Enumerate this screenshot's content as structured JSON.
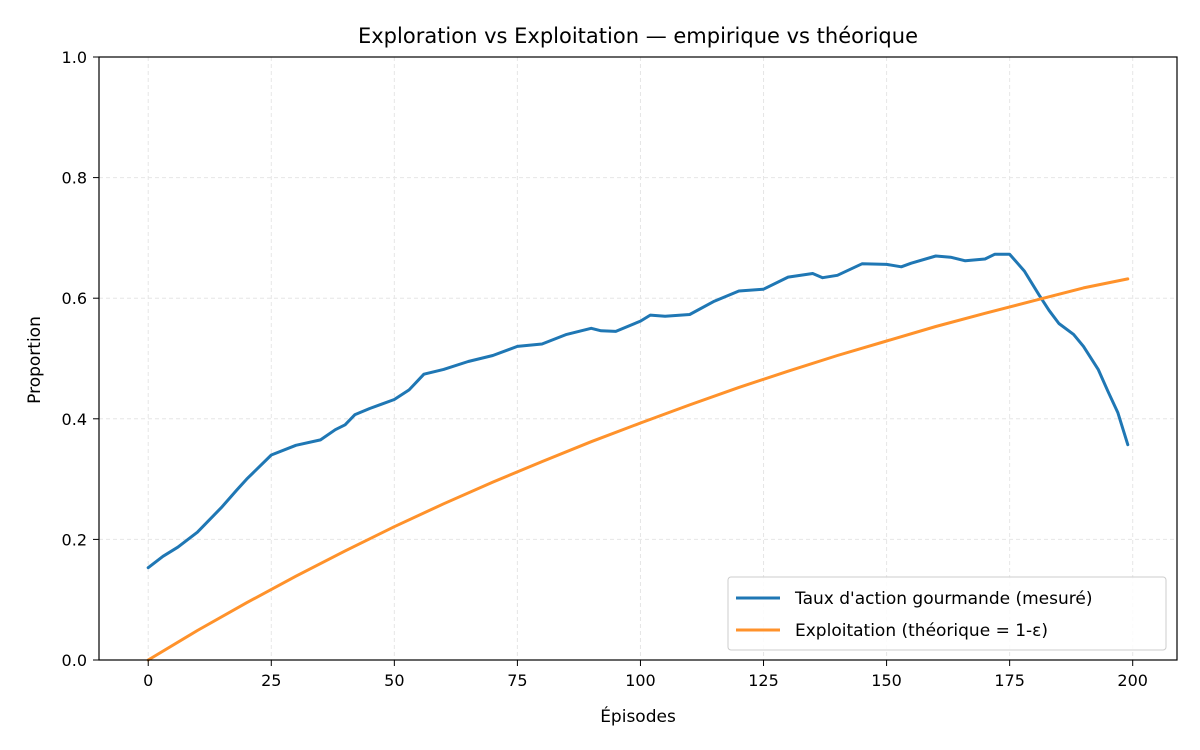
{
  "chart_data": {
    "type": "line",
    "title": "Exploration vs Exploitation — empirique vs théorique",
    "xlabel": "Épisodes",
    "ylabel": "Proportion",
    "xlim": [
      -10,
      209
    ],
    "ylim": [
      0,
      1
    ],
    "xticks": [
      0,
      25,
      50,
      75,
      100,
      125,
      150,
      175,
      200
    ],
    "yticks": [
      0.0,
      0.2,
      0.4,
      0.6,
      0.8,
      1.0
    ],
    "xtick_labels": [
      "0",
      "25",
      "50",
      "75",
      "100",
      "125",
      "150",
      "175",
      "200"
    ],
    "ytick_labels": [
      "0.0",
      "0.2",
      "0.4",
      "0.6",
      "0.8",
      "1.0"
    ],
    "grid": true,
    "legend_position": "bottom-right",
    "series": [
      {
        "name": "Taux d'action gourmande (mesuré)",
        "color": "#1f77b4",
        "points": [
          [
            0,
            0.153
          ],
          [
            3,
            0.172
          ],
          [
            6,
            0.187
          ],
          [
            10,
            0.212
          ],
          [
            15,
            0.254
          ],
          [
            18,
            0.282
          ],
          [
            20,
            0.3
          ],
          [
            25,
            0.34
          ],
          [
            30,
            0.356
          ],
          [
            35,
            0.365
          ],
          [
            38,
            0.382
          ],
          [
            40,
            0.39
          ],
          [
            42,
            0.407
          ],
          [
            45,
            0.417
          ],
          [
            50,
            0.432
          ],
          [
            53,
            0.448
          ],
          [
            56,
            0.474
          ],
          [
            60,
            0.482
          ],
          [
            65,
            0.495
          ],
          [
            70,
            0.505
          ],
          [
            75,
            0.52
          ],
          [
            80,
            0.524
          ],
          [
            85,
            0.54
          ],
          [
            90,
            0.55
          ],
          [
            92,
            0.546
          ],
          [
            95,
            0.545
          ],
          [
            100,
            0.562
          ],
          [
            102,
            0.572
          ],
          [
            105,
            0.57
          ],
          [
            110,
            0.573
          ],
          [
            115,
            0.595
          ],
          [
            120,
            0.612
          ],
          [
            125,
            0.615
          ],
          [
            130,
            0.635
          ],
          [
            135,
            0.641
          ],
          [
            137,
            0.634
          ],
          [
            140,
            0.638
          ],
          [
            145,
            0.657
          ],
          [
            150,
            0.656
          ],
          [
            153,
            0.652
          ],
          [
            155,
            0.658
          ],
          [
            160,
            0.67
          ],
          [
            163,
            0.668
          ],
          [
            166,
            0.662
          ],
          [
            170,
            0.665
          ],
          [
            172,
            0.673
          ],
          [
            175,
            0.673
          ],
          [
            178,
            0.645
          ],
          [
            181,
            0.605
          ],
          [
            183,
            0.58
          ],
          [
            185,
            0.558
          ],
          [
            188,
            0.54
          ],
          [
            190,
            0.52
          ],
          [
            193,
            0.482
          ],
          [
            195,
            0.445
          ],
          [
            197,
            0.41
          ],
          [
            199,
            0.357
          ]
        ]
      },
      {
        "name": "Exploitation (théorique = 1-ε)",
        "color": "#ff922b",
        "points": [
          [
            0,
            0.0
          ],
          [
            10,
            0.049
          ],
          [
            20,
            0.095
          ],
          [
            30,
            0.139
          ],
          [
            40,
            0.181
          ],
          [
            50,
            0.221
          ],
          [
            60,
            0.259
          ],
          [
            70,
            0.295
          ],
          [
            80,
            0.329
          ],
          [
            90,
            0.362
          ],
          [
            100,
            0.393
          ],
          [
            110,
            0.423
          ],
          [
            120,
            0.452
          ],
          [
            130,
            0.479
          ],
          [
            140,
            0.505
          ],
          [
            150,
            0.529
          ],
          [
            160,
            0.553
          ],
          [
            170,
            0.575
          ],
          [
            180,
            0.596
          ],
          [
            190,
            0.617
          ],
          [
            199,
            0.632
          ]
        ]
      }
    ]
  }
}
